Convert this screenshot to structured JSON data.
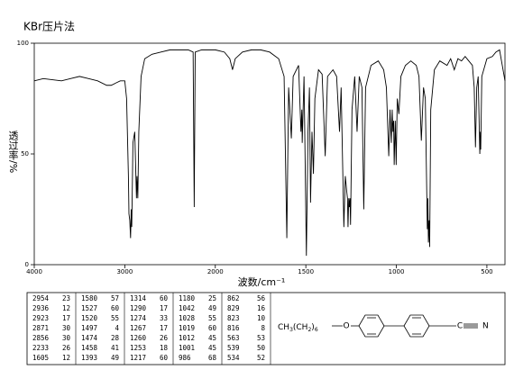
{
  "chart_data": {
    "type": "line",
    "title": "KBr压片法",
    "x_label": "波数/cm⁻¹",
    "y_label": "透过率/%",
    "xlim": [
      4000,
      400
    ],
    "xticks": [
      4000,
      3000,
      2000,
      1500,
      1000,
      500
    ],
    "ylim": [
      0,
      100
    ],
    "yticks": [
      0,
      50,
      100
    ],
    "color": "#000000",
    "x": [
      4000,
      3900,
      3800,
      3700,
      3600,
      3500,
      3400,
      3300,
      3200,
      3150,
      3100,
      3050,
      3000,
      2980,
      2960,
      2954,
      2945,
      2936,
      2929,
      2923,
      2910,
      2890,
      2871,
      2865,
      2856,
      2845,
      2820,
      2780,
      2700,
      2600,
      2500,
      2400,
      2300,
      2245,
      2233,
      2222,
      2150,
      2100,
      2050,
      2000,
      1950,
      1920,
      1905,
      1890,
      1850,
      1800,
      1750,
      1700,
      1650,
      1620,
      1605,
      1595,
      1580,
      1570,
      1540,
      1527,
      1522,
      1520,
      1510,
      1497,
      1488,
      1480,
      1474,
      1466,
      1458,
      1450,
      1430,
      1410,
      1393,
      1380,
      1350,
      1330,
      1314,
      1305,
      1290,
      1282,
      1274,
      1270,
      1267,
      1263,
      1260,
      1256,
      1253,
      1245,
      1230,
      1217,
      1205,
      1190,
      1180,
      1170,
      1140,
      1100,
      1070,
      1055,
      1042,
      1035,
      1028,
      1023,
      1019,
      1015,
      1012,
      1006,
      1001,
      995,
      986,
      975,
      950,
      920,
      890,
      875,
      862,
      850,
      840,
      829,
      826,
      823,
      819,
      816,
      810,
      790,
      760,
      720,
      700,
      680,
      660,
      640,
      620,
      600,
      580,
      570,
      563,
      556,
      548,
      539,
      536,
      534,
      528,
      500,
      470,
      450,
      430,
      415,
      400
    ],
    "values": [
      83,
      84,
      83.5,
      83,
      84,
      85,
      84,
      83,
      81,
      81,
      82,
      83,
      83,
      75,
      40,
      23,
      20,
      12,
      25,
      17,
      55,
      60,
      30,
      40,
      30,
      60,
      85,
      93,
      95,
      96,
      97,
      97,
      97,
      96,
      26,
      96,
      97,
      97,
      97,
      97,
      96,
      93,
      88,
      93,
      96,
      97,
      97,
      96,
      93,
      85,
      12,
      80,
      57,
      85,
      90,
      60,
      70,
      55,
      85,
      4,
      60,
      80,
      28,
      60,
      41,
      75,
      88,
      86,
      49,
      85,
      88,
      85,
      60,
      80,
      17,
      40,
      33,
      30,
      17,
      30,
      26,
      30,
      18,
      70,
      85,
      60,
      85,
      80,
      25,
      80,
      90,
      92,
      88,
      80,
      49,
      70,
      55,
      70,
      60,
      65,
      45,
      65,
      45,
      75,
      68,
      85,
      90,
      92,
      90,
      85,
      56,
      80,
      75,
      16,
      30,
      10,
      20,
      8,
      70,
      88,
      92,
      90,
      93,
      88,
      93,
      92,
      94,
      92,
      90,
      80,
      53,
      80,
      85,
      50,
      60,
      52,
      85,
      93,
      94,
      96,
      97,
      90,
      83
    ]
  },
  "peak_table": {
    "groups": [
      [
        [
          2954,
          23
        ],
        [
          2936,
          12
        ],
        [
          2923,
          17
        ],
        [
          2871,
          30
        ],
        [
          2856,
          30
        ],
        [
          2233,
          26
        ],
        [
          1605,
          12
        ]
      ],
      [
        [
          1580,
          57
        ],
        [
          1527,
          60
        ],
        [
          1520,
          55
        ],
        [
          1497,
          4
        ],
        [
          1474,
          28
        ],
        [
          1458,
          41
        ],
        [
          1393,
          49
        ]
      ],
      [
        [
          1314,
          60
        ],
        [
          1290,
          17
        ],
        [
          1274,
          33
        ],
        [
          1267,
          17
        ],
        [
          1260,
          26
        ],
        [
          1253,
          18
        ],
        [
          1217,
          60
        ]
      ],
      [
        [
          1180,
          25
        ],
        [
          1042,
          49
        ],
        [
          1028,
          55
        ],
        [
          1019,
          60
        ],
        [
          1012,
          45
        ],
        [
          1001,
          45
        ],
        [
          986,
          68
        ]
      ],
      [
        [
          862,
          56
        ],
        [
          829,
          16
        ],
        [
          823,
          10
        ],
        [
          816,
          8
        ],
        [
          563,
          53
        ],
        [
          539,
          50
        ],
        [
          534,
          52
        ]
      ]
    ]
  },
  "structure": {
    "formula_parts": [
      "CH",
      "3",
      "(CH",
      "2",
      ")",
      "6"
    ],
    "oxygen": "O",
    "carbon": "C",
    "nitrogen": "N"
  }
}
